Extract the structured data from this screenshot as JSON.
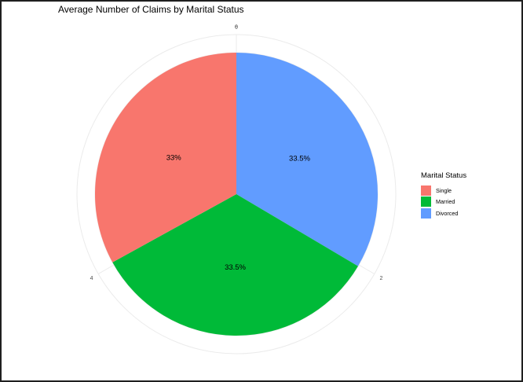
{
  "chart_data": {
    "type": "pie",
    "title": "Average Number of Claims by Marital Status",
    "categories": [
      "Single",
      "Married",
      "Divorced"
    ],
    "values": [
      33.0,
      33.5,
      33.5
    ],
    "data_labels": [
      "33%",
      "33.5%",
      "33.5%"
    ],
    "colors": [
      "#F8766D",
      "#00BA38",
      "#619CFF"
    ],
    "legend": {
      "title": "Marital Status",
      "position": "right"
    },
    "angular_axis": {
      "ticks": [
        "0",
        "2",
        "4",
        "6"
      ],
      "range": [
        0,
        6
      ]
    },
    "slice_order_clockwise_from_top": [
      "Divorced",
      "Married",
      "Single"
    ]
  }
}
